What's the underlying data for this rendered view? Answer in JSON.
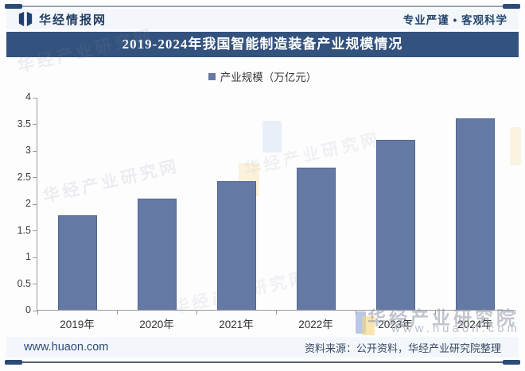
{
  "header": {
    "brand": "华经情报网",
    "slogan": "专业严谨 • 客观科学"
  },
  "title": {
    "text": "2019-2024年我国智能制造装备产业规模情况"
  },
  "legend": {
    "label": "产业规模（万亿元）"
  },
  "chart_data": {
    "type": "bar",
    "title": "2019-2024年我国智能制造装备产业规模情况",
    "series_name": "产业规模（万亿元）",
    "categories": [
      "2019年",
      "2020年",
      "2021年",
      "2022年",
      "2023年",
      "2024年"
    ],
    "values": [
      1.78,
      2.09,
      2.42,
      2.67,
      3.2,
      3.6
    ],
    "xlabel": "",
    "ylabel": "",
    "ylim": [
      0,
      4
    ],
    "ytick_step": 0.5,
    "grid": false,
    "legend_position": "top",
    "bar_color": "#6479a4",
    "axis_color": "#9b9b9b"
  },
  "watermarks": {
    "diagonal_text": "华经产业研究网",
    "corner_text": "华经产业研究院",
    "corner_url": "www.huaon.com"
  },
  "footer": {
    "site": "www.huaon.com",
    "source": "资料来源：公开资料，华经产业研究院整理"
  },
  "colors": {
    "banner": "#33527e",
    "bar": "#6479a4",
    "accent_navy": "#2c4a78"
  }
}
